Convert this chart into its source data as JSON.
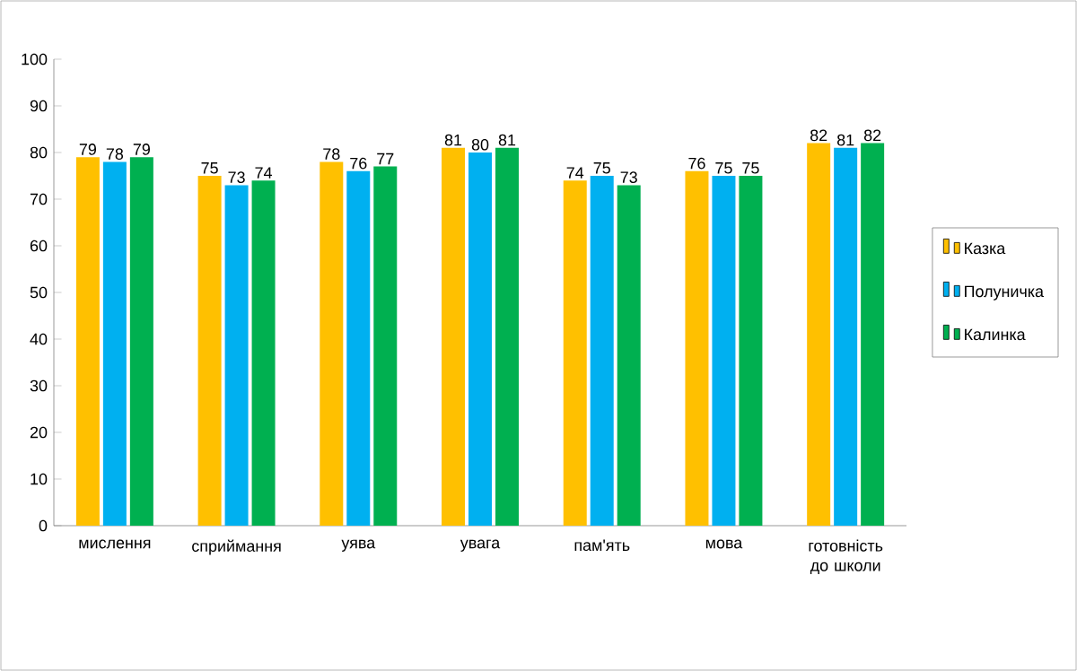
{
  "chart_data": {
    "type": "bar",
    "categories": [
      "мислення",
      "сприймання",
      "уява",
      "увага",
      "пам'ять",
      "мова",
      "готовність до школи"
    ],
    "series": [
      {
        "name": "Казка",
        "color": "#ffc000",
        "values": [
          79,
          75,
          78,
          81,
          74,
          76,
          82
        ]
      },
      {
        "name": "Полуничка",
        "color": "#00b0f0",
        "values": [
          78,
          73,
          76,
          80,
          75,
          75,
          81
        ]
      },
      {
        "name": "Калинка",
        "color": "#00b050",
        "values": [
          79,
          74,
          77,
          81,
          73,
          75,
          82
        ]
      }
    ],
    "ylim": [
      0,
      100
    ],
    "yticks": [
      0,
      10,
      20,
      30,
      40,
      50,
      60,
      70,
      80,
      90,
      100
    ],
    "data_labels": true,
    "legend": "right",
    "grid": false
  }
}
